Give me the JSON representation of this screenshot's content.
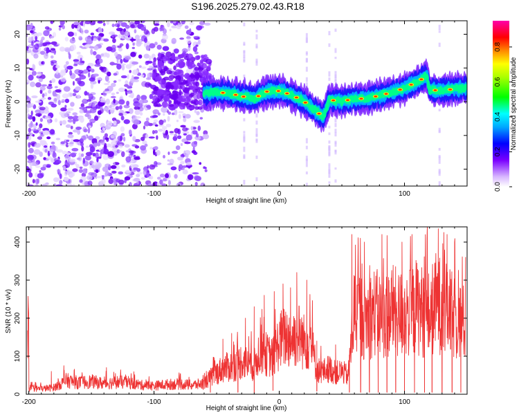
{
  "title": "S196.2025.279.02.43.R18",
  "chart_data": [
    {
      "type": "heatmap",
      "xlabel": "Height of straight line (km)",
      "ylabel": "Frequency (Hz)",
      "xlim": [
        -202,
        150
      ],
      "ylim": [
        -25,
        24
      ],
      "x_ticks": [
        -200,
        -100,
        0,
        100
      ],
      "x_tick_labels": [
        "-200",
        "-100",
        "0",
        "100"
      ],
      "y_ticks": [
        -20,
        -10,
        0,
        10,
        20
      ],
      "y_tick_labels": [
        "-20",
        "-10",
        "0",
        "10",
        "20"
      ],
      "ridge": {
        "x": [
          -60,
          -50,
          -40,
          -30,
          -20,
          -10,
          0,
          10,
          20,
          30,
          35,
          40,
          50,
          60,
          70,
          80,
          90,
          100,
          105,
          110,
          115,
          118,
          120,
          130,
          140,
          150
        ],
        "freq": [
          2.5,
          2.8,
          2.5,
          1.6,
          1.0,
          3.0,
          3.2,
          2.0,
          0.0,
          -3.0,
          -4.5,
          0.5,
          0.2,
          0.8,
          1.0,
          1.8,
          2.8,
          4.0,
          5.0,
          5.8,
          7.0,
          7.5,
          3.5,
          3.3,
          3.8,
          4.2
        ]
      },
      "colorbar": {
        "label": "Normalized spectral amplitude",
        "range": [
          0.0,
          0.95
        ],
        "ticks": [
          0.0,
          0.2,
          0.4,
          0.6,
          0.8
        ],
        "tick_labels": [
          "0.0",
          "0.2",
          "0.4",
          "0.6",
          "0.8"
        ]
      }
    },
    {
      "type": "line",
      "xlabel": "Height of straight line (km)",
      "ylabel": "SNR (10 * v/v)",
      "xlim": [
        -202,
        150
      ],
      "ylim": [
        0,
        440
      ],
      "x_ticks": [
        -200,
        -100,
        0,
        100
      ],
      "x_tick_labels": [
        "-200",
        "-100",
        "0",
        "100"
      ],
      "y_ticks": [
        0,
        100,
        200,
        300,
        400
      ],
      "y_tick_labels": [
        "0",
        "100",
        "200",
        "300",
        "400"
      ],
      "series": [
        {
          "name": "SNR",
          "color": "#ee3333",
          "x": [
            -200,
            -190,
            -180,
            -170,
            -160,
            -150,
            -140,
            -130,
            -120,
            -110,
            -100,
            -90,
            -80,
            -70,
            -60,
            -55,
            -50,
            -45,
            -40,
            -35,
            -30,
            -25,
            -20,
            -15,
            -10,
            -5,
            0,
            5,
            10,
            15,
            20,
            25,
            30,
            35,
            40,
            45,
            50,
            55,
            60,
            65,
            70,
            75,
            80,
            85,
            90,
            95,
            100,
            105,
            110,
            115,
            120,
            125,
            130,
            135,
            140,
            145,
            148
          ],
          "y": [
            20,
            18,
            22,
            45,
            38,
            42,
            35,
            40,
            38,
            30,
            28,
            32,
            34,
            30,
            35,
            55,
            70,
            85,
            90,
            95,
            110,
            100,
            95,
            150,
            130,
            120,
            175,
            190,
            180,
            200,
            170,
            175,
            80,
            75,
            85,
            70,
            75,
            60,
            280,
            260,
            250,
            270,
            260,
            255,
            280,
            260,
            270,
            265,
            290,
            270,
            260,
            300,
            290,
            270,
            250,
            240,
            230
          ],
          "peaks": [
            {
              "x": -182,
              "y": 60
            },
            {
              "x": -172,
              "y": 75
            },
            {
              "x": -138,
              "y": 70
            },
            {
              "x": -52,
              "y": 95
            },
            {
              "x": -45,
              "y": 145
            },
            {
              "x": -38,
              "y": 160
            },
            {
              "x": -27,
              "y": 200
            },
            {
              "x": -20,
              "y": 230
            },
            {
              "x": -12,
              "y": 260
            },
            {
              "x": -4,
              "y": 270
            },
            {
              "x": 3,
              "y": 290
            },
            {
              "x": 9,
              "y": 280
            },
            {
              "x": 14,
              "y": 320
            },
            {
              "x": 22,
              "y": 300
            },
            {
              "x": 30,
              "y": 140
            },
            {
              "x": 45,
              "y": 130
            },
            {
              "x": 58,
              "y": 420
            },
            {
              "x": 68,
              "y": 400
            },
            {
              "x": 82,
              "y": 420
            },
            {
              "x": 98,
              "y": 400
            },
            {
              "x": 106,
              "y": 420
            },
            {
              "x": 118,
              "y": 410
            },
            {
              "x": 127,
              "y": 435
            },
            {
              "x": 134,
              "y": 420
            },
            {
              "x": 140,
              "y": 400
            }
          ],
          "dips": [
            {
              "x": -55,
              "y": 5
            },
            {
              "x": -33,
              "y": 5
            },
            {
              "x": -20,
              "y": 4
            },
            {
              "x": -5,
              "y": 10
            },
            {
              "x": 30,
              "y": 8
            },
            {
              "x": 56,
              "y": 5
            },
            {
              "x": 65,
              "y": 5
            },
            {
              "x": 72,
              "y": 5
            },
            {
              "x": 79,
              "y": 5
            },
            {
              "x": 86,
              "y": 5
            },
            {
              "x": 93,
              "y": 5
            },
            {
              "x": 100,
              "y": 5
            },
            {
              "x": 108,
              "y": 5
            },
            {
              "x": 116,
              "y": 5
            },
            {
              "x": 122,
              "y": 5
            },
            {
              "x": 130,
              "y": 5
            },
            {
              "x": 138,
              "y": 5
            },
            {
              "x": 145,
              "y": 5
            }
          ]
        }
      ]
    }
  ]
}
